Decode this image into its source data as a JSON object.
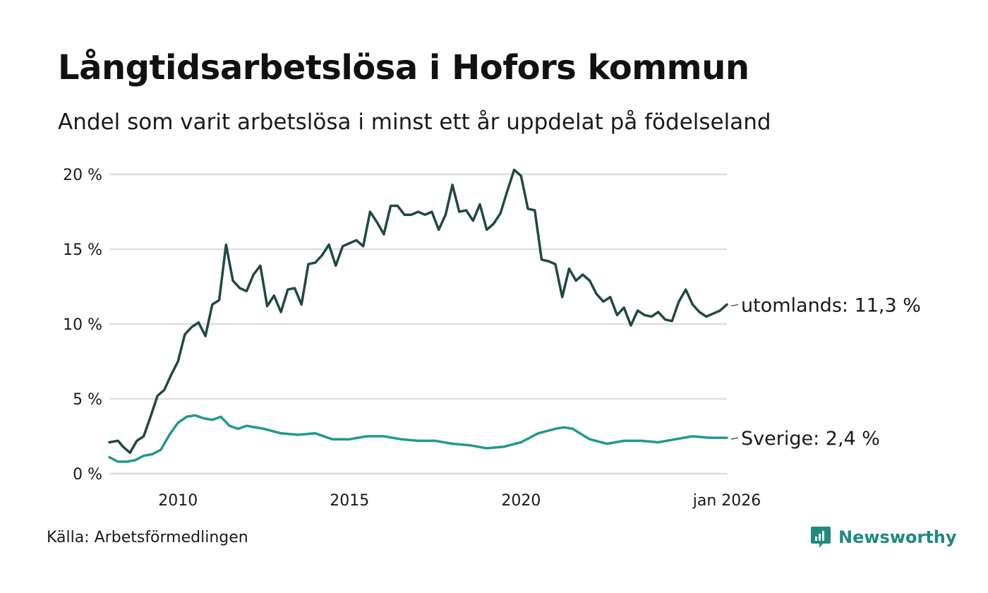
{
  "title": "Långtidsarbetslösa i Hofors kommun",
  "subtitle": "Andel som varit arbetslösa i minst ett år uppdelat på födelseland",
  "source": "Källa: Arbetsförmedlingen",
  "brand": {
    "name": "Newsworthy",
    "icon": "newsworthy-logo-icon",
    "color": "#1f8a7e"
  },
  "chart_data": {
    "type": "line",
    "y_tick_labels": [
      "0 %",
      "5 %",
      "10 %",
      "15 %",
      "20 %"
    ],
    "y_ticks": [
      0,
      5,
      10,
      15,
      20
    ],
    "ylim": [
      0,
      20
    ],
    "x_tick_labels": [
      "2010",
      "2015",
      "2020",
      "jan 2026"
    ],
    "x_ticks": [
      2010,
      2015,
      2020,
      2026
    ],
    "xlim": [
      2008.0,
      2026.0
    ],
    "grid": true,
    "series": [
      {
        "name": "utomlands",
        "label": "utomlands: 11,3 %",
        "color": "#1e4944",
        "x": [
          2008.0,
          2008.25,
          2008.4,
          2008.6,
          2008.8,
          2009.0,
          2009.2,
          2009.4,
          2009.6,
          2009.8,
          2010.0,
          2010.2,
          2010.4,
          2010.6,
          2010.8,
          2011.0,
          2011.2,
          2011.4,
          2011.6,
          2011.8,
          2012.0,
          2012.2,
          2012.4,
          2012.6,
          2012.8,
          2013.0,
          2013.2,
          2013.4,
          2013.6,
          2013.8,
          2014.0,
          2014.2,
          2014.4,
          2014.6,
          2014.8,
          2015.0,
          2015.2,
          2015.4,
          2015.6,
          2015.8,
          2016.0,
          2016.2,
          2016.4,
          2016.6,
          2016.8,
          2017.0,
          2017.2,
          2017.4,
          2017.6,
          2017.8,
          2018.0,
          2018.2,
          2018.4,
          2018.6,
          2018.8,
          2019.0,
          2019.2,
          2019.4,
          2019.6,
          2019.8,
          2020.0,
          2020.2,
          2020.4,
          2020.6,
          2020.8,
          2021.0,
          2021.2,
          2021.4,
          2021.6,
          2021.8,
          2022.0,
          2022.2,
          2022.4,
          2022.6,
          2022.8,
          2023.0,
          2023.2,
          2023.4,
          2023.6,
          2023.8,
          2024.0,
          2024.2,
          2024.4,
          2024.6,
          2024.8,
          2025.0,
          2025.2,
          2025.4,
          2025.6,
          2025.8,
          2026.0
        ],
        "values": [
          2.1,
          2.2,
          1.8,
          1.4,
          2.2,
          2.5,
          3.8,
          5.2,
          5.6,
          6.6,
          7.5,
          9.3,
          9.8,
          10.1,
          9.2,
          11.3,
          11.6,
          15.3,
          12.9,
          12.4,
          12.2,
          13.3,
          13.9,
          11.2,
          11.9,
          10.8,
          12.3,
          12.4,
          11.3,
          14.0,
          14.1,
          14.6,
          15.3,
          13.9,
          15.2,
          15.4,
          15.6,
          15.2,
          17.5,
          16.8,
          16.0,
          17.9,
          17.9,
          17.3,
          17.3,
          17.5,
          17.3,
          17.5,
          16.3,
          17.3,
          19.3,
          17.5,
          17.6,
          16.9,
          18.0,
          16.3,
          16.7,
          17.4,
          18.9,
          20.3,
          19.9,
          17.7,
          17.6,
          14.3,
          14.2,
          14.0,
          11.8,
          13.7,
          12.9,
          13.3,
          12.9,
          12.0,
          11.5,
          11.8,
          10.6,
          11.1,
          9.9,
          10.9,
          10.6,
          10.5,
          10.8,
          10.3,
          10.2,
          11.5,
          12.3,
          11.3,
          10.8,
          10.5,
          10.7,
          10.9,
          11.3
        ]
      },
      {
        "name": "Sverige",
        "label": "Sverige:  2,4 %",
        "color": "#1f9a8c",
        "x": [
          2008.0,
          2008.25,
          2008.5,
          2008.75,
          2009.0,
          2009.25,
          2009.5,
          2009.75,
          2010.0,
          2010.25,
          2010.5,
          2010.75,
          2011.0,
          2011.25,
          2011.5,
          2011.75,
          2012.0,
          2012.5,
          2013.0,
          2013.5,
          2014.0,
          2014.5,
          2015.0,
          2015.5,
          2016.0,
          2016.5,
          2017.0,
          2017.5,
          2018.0,
          2018.5,
          2019.0,
          2019.5,
          2020.0,
          2020.5,
          2021.0,
          2021.25,
          2021.5,
          2022.0,
          2022.5,
          2023.0,
          2023.5,
          2024.0,
          2024.5,
          2025.0,
          2025.5,
          2026.0
        ],
        "values": [
          1.1,
          0.8,
          0.8,
          0.9,
          1.2,
          1.3,
          1.6,
          2.6,
          3.4,
          3.8,
          3.9,
          3.7,
          3.6,
          3.8,
          3.2,
          3.0,
          3.2,
          3.0,
          2.7,
          2.6,
          2.7,
          2.3,
          2.3,
          2.5,
          2.5,
          2.3,
          2.2,
          2.2,
          2.0,
          1.9,
          1.7,
          1.8,
          2.1,
          2.7,
          3.0,
          3.1,
          3.0,
          2.3,
          2.0,
          2.2,
          2.2,
          2.1,
          2.3,
          2.5,
          2.4,
          2.4
        ]
      }
    ]
  }
}
